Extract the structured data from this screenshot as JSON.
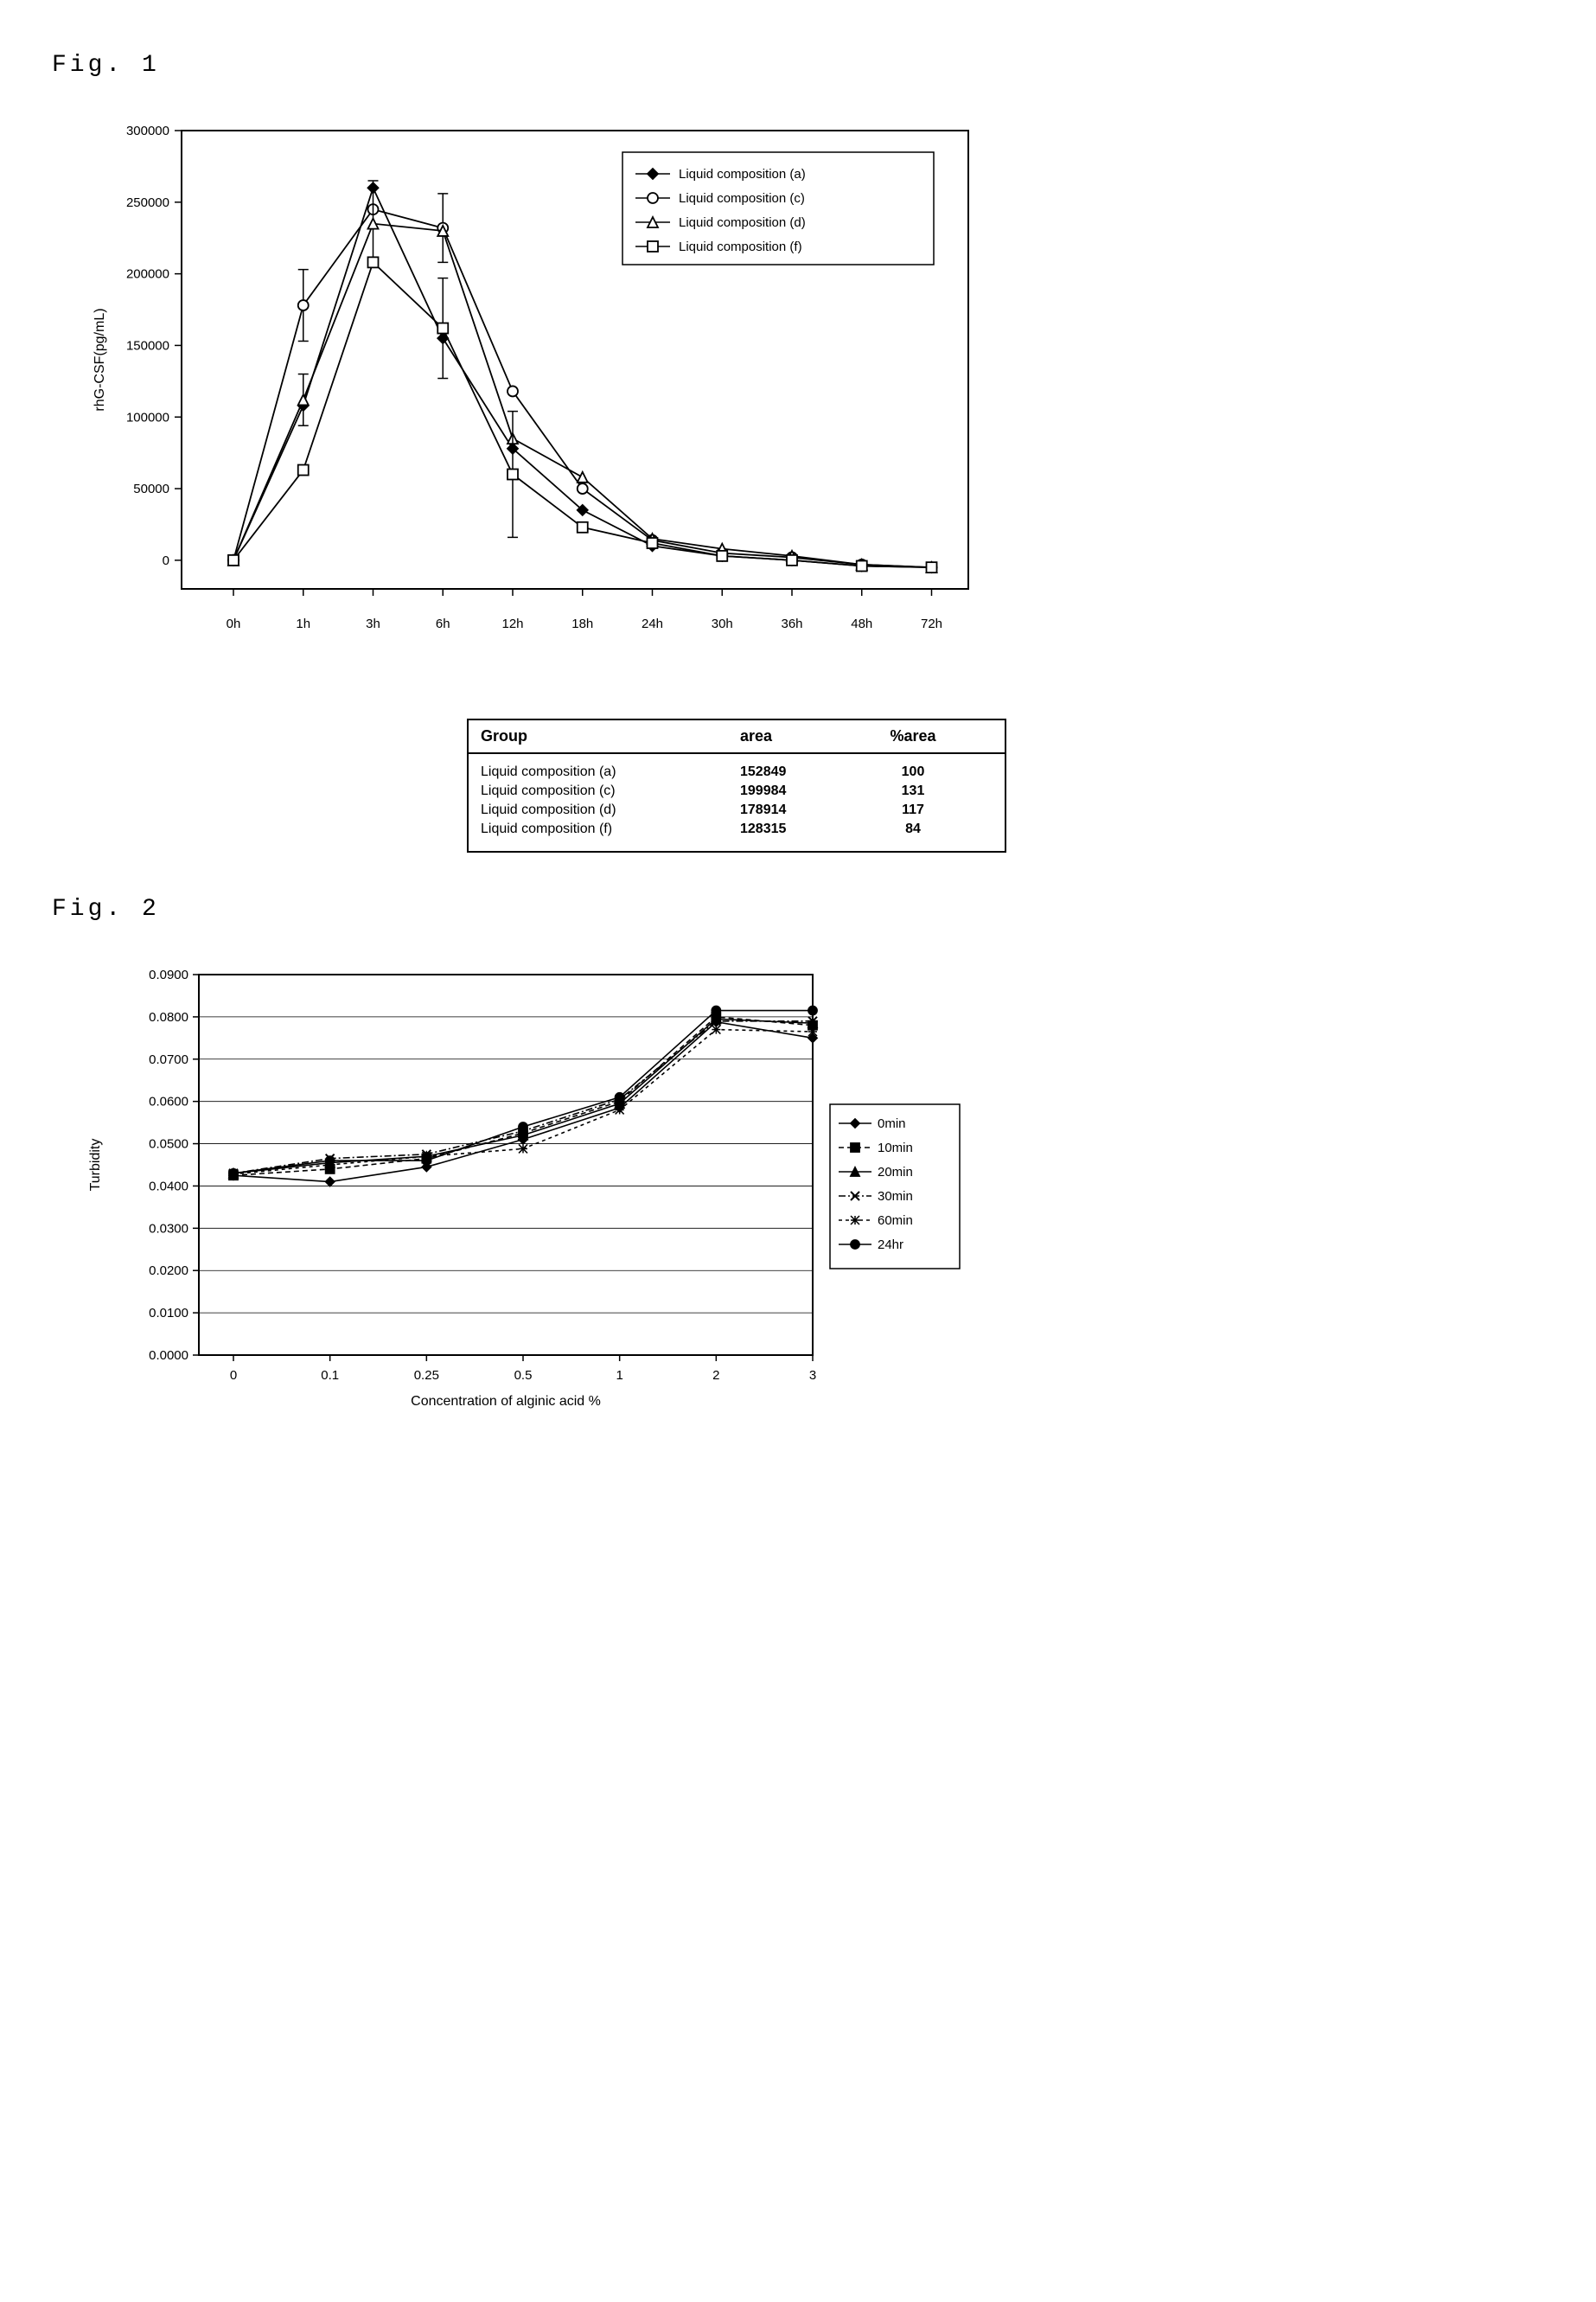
{
  "fig1": {
    "label": "Fig. 1",
    "type": "line",
    "ylabel": "rhG-CSF(pg/mL)",
    "xcats": [
      "0h",
      "1h",
      "3h",
      "6h",
      "12h",
      "18h",
      "24h",
      "30h",
      "36h",
      "48h",
      "72h"
    ],
    "ylim": [
      -20000,
      300000
    ],
    "yticks": [
      0,
      50000,
      100000,
      150000,
      200000,
      250000,
      300000
    ],
    "line_color": "#000000",
    "background_color": "#ffffff",
    "axis_color": "#000000",
    "label_fontsize": 15,
    "series": [
      {
        "key": "a",
        "name": "Liquid composition (a)",
        "marker": "diamond",
        "fill": "#000",
        "y": [
          0,
          108000,
          260000,
          155000,
          78000,
          35000,
          10000,
          3000,
          0,
          -4000,
          -5000
        ],
        "err": [
          0,
          0,
          0,
          0,
          0,
          0,
          0,
          0,
          0,
          0,
          0
        ]
      },
      {
        "key": "c",
        "name": "Liquid composition (c)",
        "marker": "circle",
        "fill": "#fff",
        "y": [
          0,
          178000,
          245000,
          232000,
          118000,
          50000,
          14000,
          5000,
          2000,
          -3000,
          -5000
        ],
        "err": [
          0,
          25000,
          0,
          24000,
          0,
          0,
          0,
          0,
          0,
          0,
          0
        ]
      },
      {
        "key": "d",
        "name": "Liquid composition (d)",
        "marker": "triangle",
        "fill": "#fff",
        "y": [
          0,
          112000,
          235000,
          230000,
          85000,
          58000,
          15000,
          8000,
          3000,
          -3000,
          -5000
        ],
        "err": [
          0,
          18000,
          30000,
          0,
          0,
          0,
          0,
          0,
          0,
          0,
          0
        ]
      },
      {
        "key": "f",
        "name": "Liquid composition (f)",
        "marker": "square",
        "fill": "#fff",
        "y": [
          0,
          63000,
          208000,
          162000,
          60000,
          23000,
          12000,
          3000,
          0,
          -4000,
          -5000
        ],
        "err": [
          0,
          0,
          0,
          35000,
          44000,
          0,
          0,
          0,
          0,
          0,
          0
        ]
      }
    ],
    "table": {
      "headers": [
        "Group",
        "area",
        "%area"
      ],
      "rows": [
        [
          "Liquid composition (a)",
          "152849",
          "100"
        ],
        [
          "Liquid composition (c)",
          "199984",
          "131"
        ],
        [
          "Liquid composition (d)",
          "178914",
          "117"
        ],
        [
          "Liquid composition (f)",
          "128315",
          "84"
        ]
      ]
    }
  },
  "fig2": {
    "label": "Fig. 2",
    "type": "line",
    "ylabel": "Turbidity",
    "xlabel": "Concentration of alginic acid  %",
    "xcats": [
      "0",
      "0.1",
      "0.25",
      "0.5",
      "1",
      "2",
      "3"
    ],
    "ylim": [
      0,
      0.09
    ],
    "ytick_step": 0.01,
    "yticks_labels": [
      "0.0000",
      "0.0100",
      "0.0200",
      "0.0300",
      "0.0400",
      "0.0500",
      "0.0600",
      "0.0700",
      "0.0800",
      "0.0900"
    ],
    "line_color": "#000000",
    "grid_color": "#000000",
    "background_color": "#ffffff",
    "label_fontsize": 15,
    "series": [
      {
        "name": "0min",
        "marker": "diamond",
        "fill": "#000",
        "dash": "",
        "y": [
          0.0425,
          0.041,
          0.0445,
          0.051,
          0.0585,
          0.0788,
          0.075
        ]
      },
      {
        "name": "10min",
        "marker": "square",
        "fill": "#000",
        "dash": "6,4",
        "y": [
          0.0425,
          0.044,
          0.0465,
          0.0525,
          0.06,
          0.08,
          0.078
        ]
      },
      {
        "name": "20min",
        "marker": "triangle",
        "fill": "#000",
        "dash": "",
        "y": [
          0.043,
          0.0455,
          0.047,
          0.052,
          0.0595,
          0.0795,
          0.0785
        ]
      },
      {
        "name": "30min",
        "marker": "x",
        "fill": "#000",
        "dash": "8,3,2,3",
        "y": [
          0.043,
          0.0465,
          0.0475,
          0.053,
          0.0605,
          0.079,
          0.079
        ]
      },
      {
        "name": "60min",
        "marker": "asterisk",
        "fill": "#000",
        "dash": "4,4",
        "y": [
          0.0428,
          0.045,
          0.047,
          0.0488,
          0.058,
          0.077,
          0.0765
        ]
      },
      {
        "name": "24hr",
        "marker": "circle",
        "fill": "#000",
        "dash": "",
        "y": [
          0.043,
          0.046,
          0.046,
          0.054,
          0.061,
          0.0815,
          0.0815
        ]
      }
    ]
  }
}
